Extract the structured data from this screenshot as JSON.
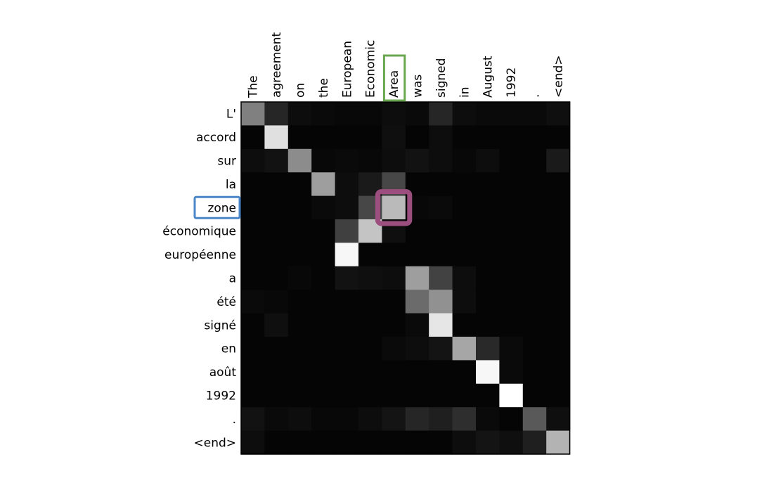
{
  "chart_data": {
    "type": "heatmap",
    "title": "",
    "xlabel": "",
    "ylabel": "",
    "x_tokens": [
      "The",
      "agreement",
      "on",
      "the",
      "European",
      "Economic",
      "Area",
      "was",
      "signed",
      "in",
      "August",
      "1992",
      ".",
      "<end>"
    ],
    "y_tokens": [
      "L'",
      "accord",
      "sur",
      "la",
      "zone",
      "économique",
      "européenne",
      "a",
      "été",
      "signé",
      "en",
      "août",
      "1992",
      ".",
      "<end>"
    ],
    "colormap": "grayscale",
    "value_range": [
      0,
      1
    ],
    "values": [
      [
        0.5,
        0.15,
        0.05,
        0.04,
        0.03,
        0.03,
        0.05,
        0.04,
        0.15,
        0.05,
        0.04,
        0.04,
        0.04,
        0.06
      ],
      [
        0.02,
        0.88,
        0.02,
        0.02,
        0.02,
        0.02,
        0.06,
        0.02,
        0.05,
        0.02,
        0.02,
        0.02,
        0.02,
        0.02
      ],
      [
        0.05,
        0.07,
        0.55,
        0.03,
        0.04,
        0.03,
        0.05,
        0.07,
        0.05,
        0.03,
        0.05,
        0.02,
        0.02,
        0.1
      ],
      [
        0.02,
        0.02,
        0.02,
        0.62,
        0.05,
        0.1,
        0.28,
        0.02,
        0.02,
        0.02,
        0.02,
        0.02,
        0.02,
        0.02
      ],
      [
        0.02,
        0.02,
        0.02,
        0.04,
        0.05,
        0.28,
        0.73,
        0.03,
        0.04,
        0.02,
        0.02,
        0.02,
        0.02,
        0.02
      ],
      [
        0.02,
        0.02,
        0.02,
        0.02,
        0.25,
        0.77,
        0.06,
        0.02,
        0.02,
        0.02,
        0.02,
        0.02,
        0.02,
        0.02
      ],
      [
        0.02,
        0.02,
        0.02,
        0.02,
        0.97,
        0.02,
        0.02,
        0.02,
        0.02,
        0.02,
        0.02,
        0.02,
        0.02,
        0.02
      ],
      [
        0.02,
        0.02,
        0.03,
        0.02,
        0.07,
        0.06,
        0.05,
        0.62,
        0.26,
        0.05,
        0.02,
        0.02,
        0.02,
        0.02
      ],
      [
        0.04,
        0.03,
        0.02,
        0.02,
        0.02,
        0.02,
        0.02,
        0.42,
        0.57,
        0.05,
        0.02,
        0.02,
        0.02,
        0.02
      ],
      [
        0.02,
        0.06,
        0.02,
        0.02,
        0.02,
        0.02,
        0.02,
        0.04,
        0.9,
        0.02,
        0.02,
        0.02,
        0.02,
        0.02
      ],
      [
        0.02,
        0.02,
        0.02,
        0.02,
        0.02,
        0.02,
        0.04,
        0.05,
        0.08,
        0.65,
        0.16,
        0.04,
        0.02,
        0.02
      ],
      [
        0.02,
        0.02,
        0.02,
        0.02,
        0.02,
        0.02,
        0.02,
        0.02,
        0.02,
        0.02,
        0.97,
        0.04,
        0.02,
        0.02
      ],
      [
        0.02,
        0.02,
        0.02,
        0.02,
        0.02,
        0.02,
        0.02,
        0.02,
        0.02,
        0.02,
        0.02,
        1.0,
        0.02,
        0.02
      ],
      [
        0.07,
        0.04,
        0.05,
        0.03,
        0.03,
        0.05,
        0.08,
        0.15,
        0.12,
        0.18,
        0.04,
        0.02,
        0.35,
        0.06
      ],
      [
        0.05,
        0.02,
        0.02,
        0.02,
        0.02,
        0.02,
        0.02,
        0.02,
        0.02,
        0.05,
        0.08,
        0.06,
        0.12,
        0.7
      ]
    ],
    "highlights": [
      {
        "kind": "x-token",
        "token": "Area",
        "color": "#6aa84f"
      },
      {
        "kind": "y-token",
        "token": "zone",
        "color": "#4a86c8"
      },
      {
        "kind": "cell",
        "row": "zone",
        "col": "Area",
        "color": "#9c4f7e"
      }
    ],
    "grid": false
  }
}
